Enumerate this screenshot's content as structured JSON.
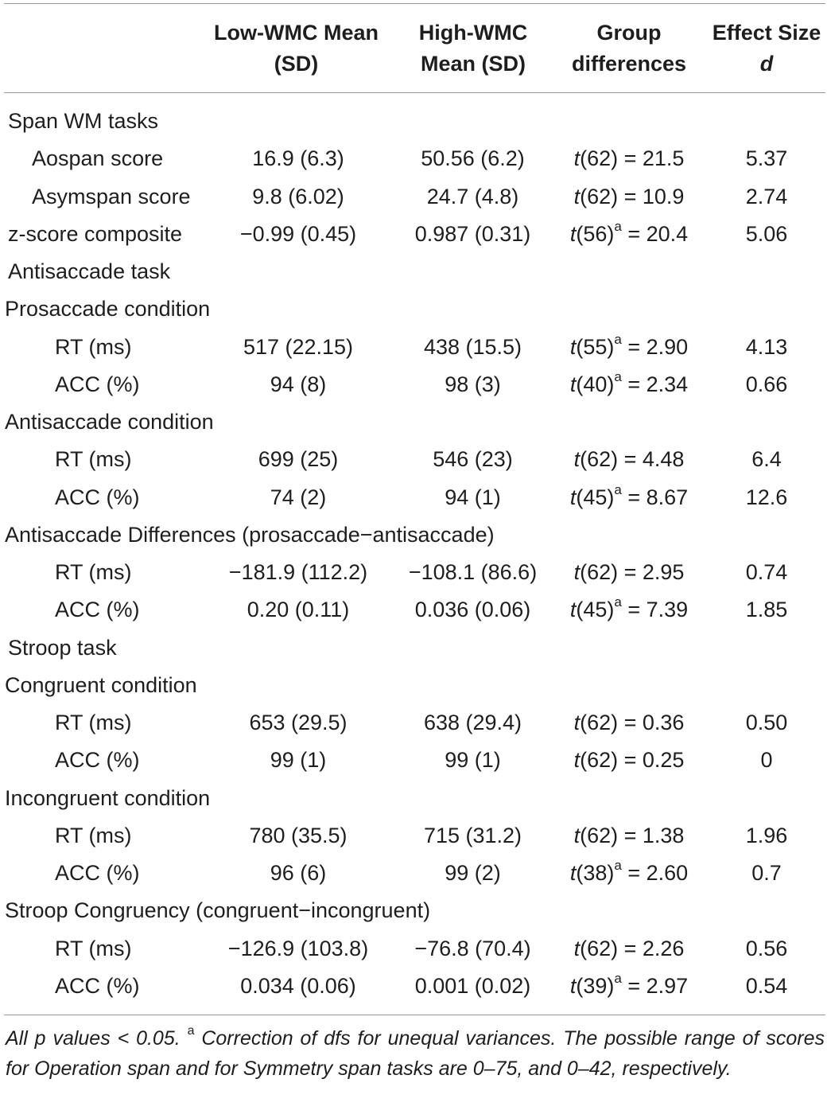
{
  "table": {
    "headers": {
      "low_line1": "Low-WMC Mean",
      "low_line2": "(SD)",
      "high_line1": "High-WMC",
      "high_line2": "Mean (SD)",
      "diff_line1": "Group",
      "diff_line2": "differences",
      "effect_line1": "Effect Size",
      "effect_line2": "d"
    },
    "rows": [
      {
        "label": "Span WM tasks",
        "level": "section"
      },
      {
        "label": "Aospan score",
        "level": "item",
        "low": "16.9 (6.3)",
        "high": "50.56 (6.2)",
        "diff_t": "t",
        "diff_df": "(62)",
        "diff_sup": "",
        "diff_val": " = 21.5",
        "effect": "5.37"
      },
      {
        "label": "Asymspan score",
        "level": "item",
        "low": "9.8 (6.02)",
        "high": "24.7 (4.8)",
        "diff_t": "t",
        "diff_df": "(62)",
        "diff_sup": "",
        "diff_val": " = 10.9",
        "effect": "2.74"
      },
      {
        "label": "z-score composite",
        "level": "section",
        "low": "−0.99 (0.45)",
        "high": "0.987 (0.31)",
        "diff_t": "t",
        "diff_df": "(56)",
        "diff_sup": "a",
        "diff_val": " = 20.4",
        "effect": "5.06"
      },
      {
        "label": "Antisaccade task",
        "level": "section"
      },
      {
        "label": "Prosaccade condition",
        "level": "subsection"
      },
      {
        "label": "RT (ms)",
        "level": "sub",
        "low": "517 (22.15)",
        "high": "438 (15.5)",
        "diff_t": "t",
        "diff_df": "(55)",
        "diff_sup": "a",
        "diff_val": " = 2.90",
        "effect": "4.13"
      },
      {
        "label": "ACC (%)",
        "level": "sub",
        "low": "94 (8)",
        "high": "98 (3)",
        "diff_t": "t",
        "diff_df": "(40)",
        "diff_sup": "a",
        "diff_val": " = 2.34",
        "effect": "0.66"
      },
      {
        "label": "Antisaccade condition",
        "level": "subsection"
      },
      {
        "label": "RT (ms)",
        "level": "sub",
        "low": "699 (25)",
        "high": "546 (23)",
        "diff_t": "t",
        "diff_df": "(62)",
        "diff_sup": "",
        "diff_val": " = 4.48",
        "effect": "6.4"
      },
      {
        "label": "ACC (%)",
        "level": "sub",
        "low": "74 (2)",
        "high": "94 (1)",
        "diff_t": "t",
        "diff_df": "(45)",
        "diff_sup": "a",
        "diff_val": " = 8.67",
        "effect": "12.6"
      },
      {
        "label": "Antisaccade Differences (prosaccade−antisaccade)",
        "level": "subsection"
      },
      {
        "label": "RT (ms)",
        "level": "sub",
        "low": "−181.9 (112.2)",
        "high": "−108.1 (86.6)",
        "diff_t": "t",
        "diff_df": "(62)",
        "diff_sup": "",
        "diff_val": " = 2.95",
        "effect": "0.74"
      },
      {
        "label": "ACC (%)",
        "level": "sub",
        "low": "0.20 (0.11)",
        "high": "0.036 (0.06)",
        "diff_t": "t",
        "diff_df": "(45)",
        "diff_sup": "a",
        "diff_val": " = 7.39",
        "effect": "1.85"
      },
      {
        "label": "Stroop task",
        "level": "section"
      },
      {
        "label": "Congruent condition",
        "level": "subsection"
      },
      {
        "label": "RT (ms)",
        "level": "sub",
        "low": "653 (29.5)",
        "high": "638 (29.4)",
        "diff_t": "t",
        "diff_df": "(62)",
        "diff_sup": "",
        "diff_val": " = 0.36",
        "effect": "0.50"
      },
      {
        "label": "ACC (%)",
        "level": "sub",
        "low": "99 (1)",
        "high": "99 (1)",
        "diff_t": "t",
        "diff_df": "(62)",
        "diff_sup": "",
        "diff_val": " = 0.25",
        "effect": "0"
      },
      {
        "label": "Incongruent condition",
        "level": "subsection"
      },
      {
        "label": "RT (ms)",
        "level": "sub",
        "low": "780 (35.5)",
        "high": "715 (31.2)",
        "diff_t": "t",
        "diff_df": "(62)",
        "diff_sup": "",
        "diff_val": " = 1.38",
        "effect": "1.96"
      },
      {
        "label": "ACC (%)",
        "level": "sub",
        "low": "96 (6)",
        "high": "99 (2)",
        "diff_t": "t",
        "diff_df": "(38)",
        "diff_sup": "a",
        "diff_val": " = 2.60",
        "effect": "0.7"
      },
      {
        "label": "Stroop Congruency (congruent−incongruent)",
        "level": "subsection"
      },
      {
        "label": "RT (ms)",
        "level": "sub",
        "low": "−126.9 (103.8)",
        "high": "−76.8 (70.4)",
        "diff_t": "t",
        "diff_df": "(62)",
        "diff_sup": "",
        "diff_val": " = 2.26",
        "effect": "0.56"
      },
      {
        "label": "ACC (%)",
        "level": "sub",
        "low": "0.034 (0.06)",
        "high": "0.001 (0.02)",
        "diff_t": "t",
        "diff_df": "(39)",
        "diff_sup": "a",
        "diff_val": " = 2.97",
        "effect": "0.54"
      }
    ]
  },
  "footnote": {
    "part1": "All p values < 0.05. ",
    "sup": "a",
    "part2": " Correction of dfs for unequal variances. The possible range of scores for Operation span and for Symmetry span tasks are 0–75, and 0–42, respectively."
  }
}
